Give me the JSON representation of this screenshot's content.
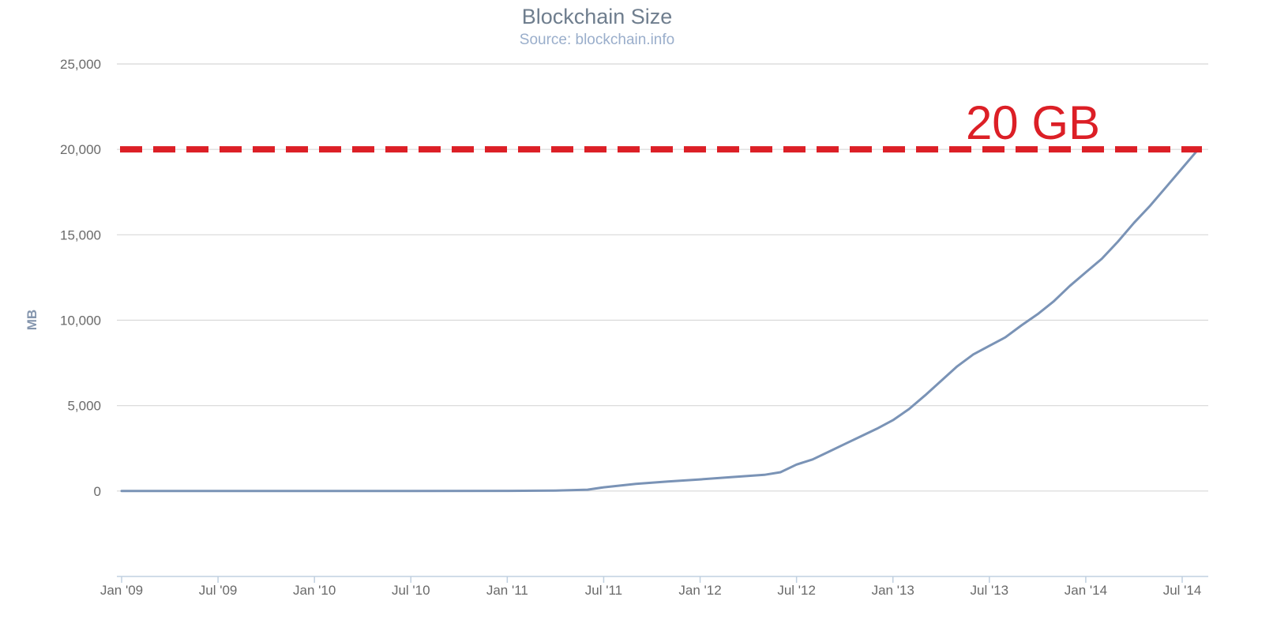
{
  "chart_data": {
    "type": "line",
    "title": "Blockchain Size",
    "subtitle": "Source: blockchain.info",
    "ylabel": "MB",
    "xlabel": "",
    "x_tick_labels": [
      "Jan '09",
      "Jul '09",
      "Jan '10",
      "Jul '10",
      "Jan '11",
      "Jul '11",
      "Jan '12",
      "Jul '12",
      "Jan '13",
      "Jul '13",
      "Jan '14",
      "Jul '14"
    ],
    "x_ticks": [
      "2009-01",
      "2009-07",
      "2010-01",
      "2010-07",
      "2011-01",
      "2011-07",
      "2012-01",
      "2012-07",
      "2013-01",
      "2013-07",
      "2014-01",
      "2014-07"
    ],
    "xlim": [
      "2009-01",
      "2014-08"
    ],
    "y_tick_labels": [
      "0",
      "5,000",
      "10,000",
      "15,000",
      "20,000",
      "25,000"
    ],
    "y_ticks": [
      0,
      5000,
      10000,
      15000,
      20000,
      25000
    ],
    "ylim": [
      -5000,
      25000
    ],
    "grid": true,
    "legend": "none",
    "series": [
      {
        "color": "#7a93b6",
        "x": [
          "2009-01",
          "2009-07",
          "2010-01",
          "2010-07",
          "2011-01",
          "2011-04",
          "2011-06",
          "2011-07",
          "2011-09",
          "2011-11",
          "2012-01",
          "2012-03",
          "2012-05",
          "2012-06",
          "2012-07",
          "2012-08",
          "2012-09",
          "2012-10",
          "2012-11",
          "2012-12",
          "2013-01",
          "2013-02",
          "2013-03",
          "2013-04",
          "2013-05",
          "2013-06",
          "2013-07",
          "2013-08",
          "2013-09",
          "2013-10",
          "2013-11",
          "2013-12",
          "2014-01",
          "2014-02",
          "2014-03",
          "2014-04",
          "2014-05",
          "2014-06",
          "2014-07",
          "2014-08"
        ],
        "values": [
          0,
          0,
          0,
          5,
          10,
          30,
          80,
          220,
          420,
          560,
          680,
          820,
          950,
          1100,
          1550,
          1850,
          2300,
          2750,
          3200,
          3650,
          4150,
          4800,
          5600,
          6450,
          7300,
          8000,
          8500,
          9000,
          9700,
          10350,
          11100,
          12000,
          12800,
          13600,
          14600,
          15700,
          16700,
          17800,
          18900,
          20000
        ]
      }
    ],
    "annotations": [
      {
        "type": "horizontal-dashed-line",
        "y": 20000,
        "color": "#dc1f26"
      },
      {
        "type": "text",
        "text": "20 GB",
        "color": "#dc1f26"
      }
    ]
  }
}
